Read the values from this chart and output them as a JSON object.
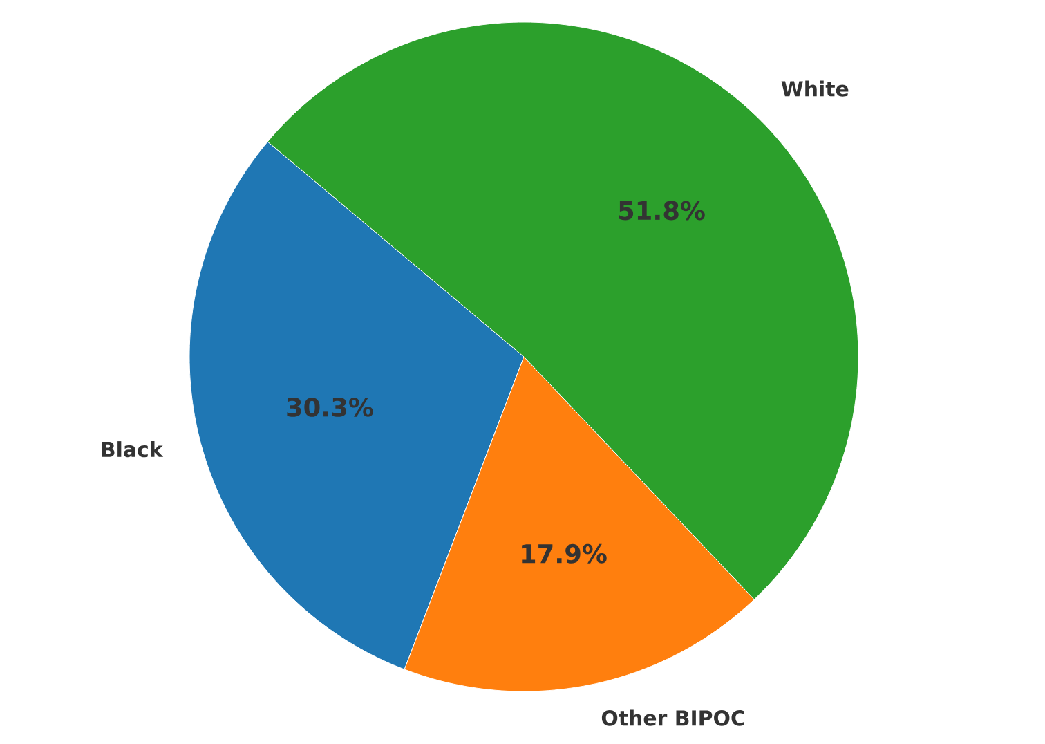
{
  "chart_data": {
    "type": "pie",
    "categories": [
      "Black",
      "Other BIPOC",
      "White"
    ],
    "values": [
      30.3,
      17.9,
      51.8
    ],
    "value_labels": [
      "30.3%",
      "17.9%",
      "51.8%"
    ],
    "colors": [
      "#1f77b4",
      "#ff7f0e",
      "#2ca02c"
    ]
  }
}
